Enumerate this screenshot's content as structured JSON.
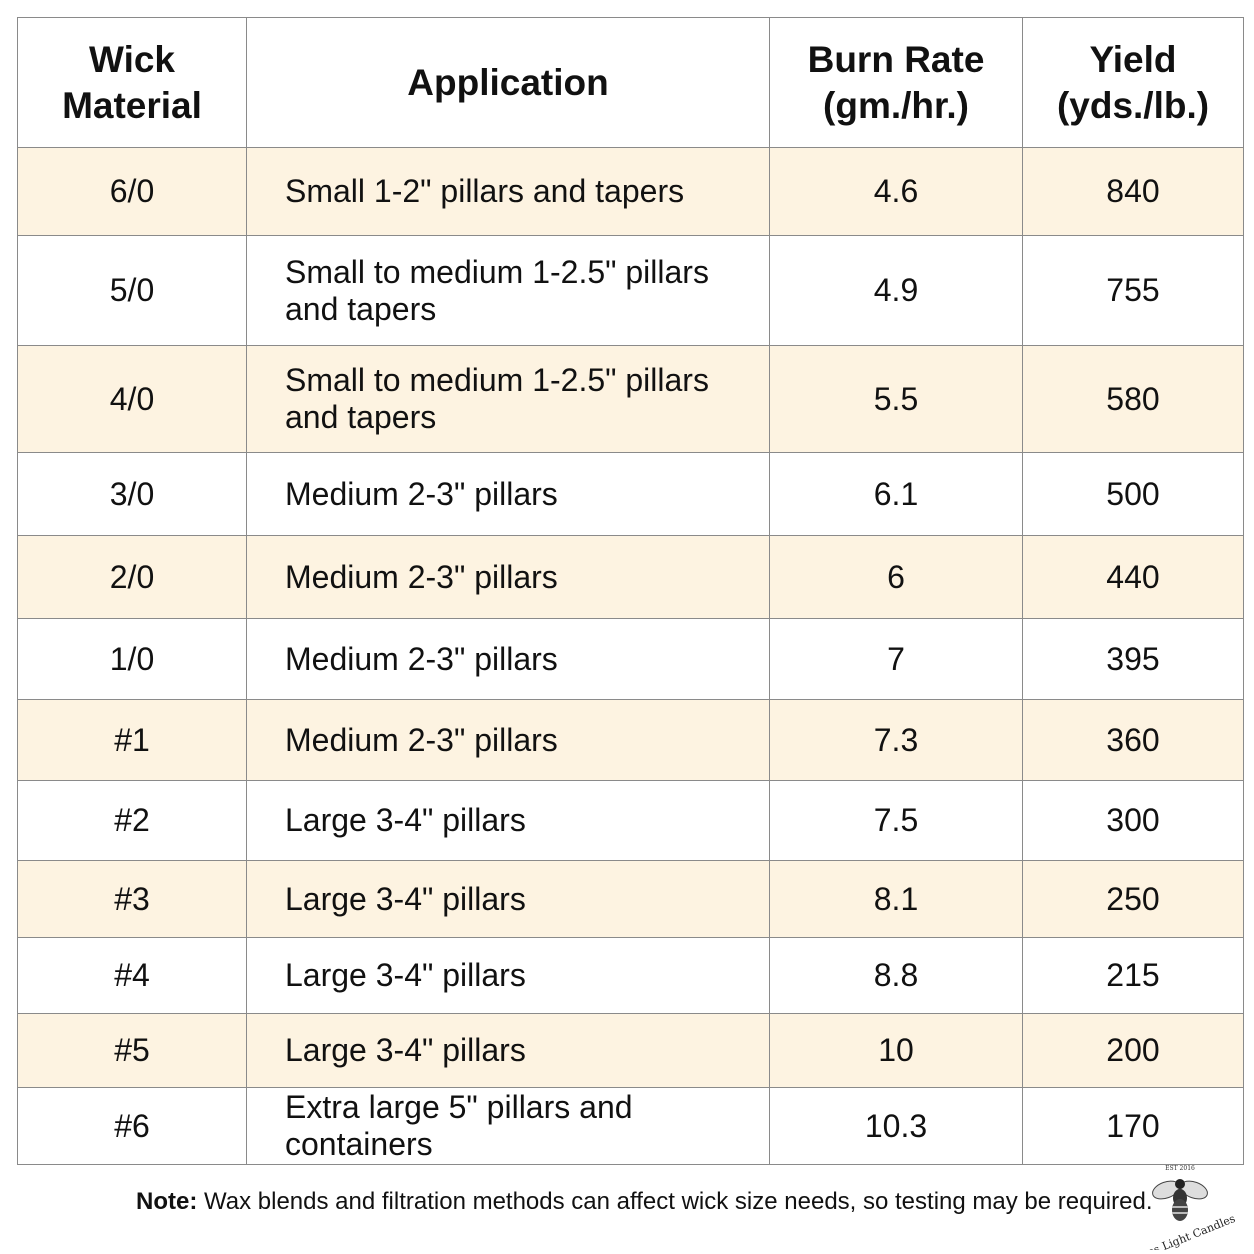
{
  "table": {
    "headers": [
      "Wick\nMaterial",
      "Application",
      "Burn Rate\n(gm./hr.)",
      "Yield\n(yds./lb.)"
    ],
    "rows": [
      {
        "material": "6/0",
        "application": "Small 1-2\" pillars and tapers",
        "burn_rate": "4.6",
        "yield": "840"
      },
      {
        "material": "5/0",
        "application": "Small to medium 1-2.5\" pillars and tapers",
        "burn_rate": "4.9",
        "yield": "755"
      },
      {
        "material": "4/0",
        "application": "Small to medium 1-2.5\" pillars and tapers",
        "burn_rate": "5.5",
        "yield": "580"
      },
      {
        "material": "3/0",
        "application": "Medium 2-3\" pillars",
        "burn_rate": "6.1",
        "yield": "500"
      },
      {
        "material": "2/0",
        "application": "Medium 2-3\" pillars",
        "burn_rate": "6",
        "yield": "440"
      },
      {
        "material": "1/0",
        "application": "Medium 2-3\" pillars",
        "burn_rate": "7",
        "yield": "395"
      },
      {
        "material": "#1",
        "application": "Medium 2-3\" pillars",
        "burn_rate": "7.3",
        "yield": "360"
      },
      {
        "material": "#2",
        "application": "Large 3-4\" pillars",
        "burn_rate": "7.5",
        "yield": "300"
      },
      {
        "material": "#3",
        "application": "Large 3-4\" pillars",
        "burn_rate": "8.1",
        "yield": "250"
      },
      {
        "material": "#4",
        "application": "Large 3-4\" pillars",
        "burn_rate": "8.8",
        "yield": "215"
      },
      {
        "material": "#5",
        "application": "Large 3-4\" pillars",
        "burn_rate": "10",
        "yield": "200"
      },
      {
        "material": "#6",
        "application": "Extra large 5\" pillars and containers",
        "burn_rate": "10.3",
        "yield": "170"
      }
    ]
  },
  "note": {
    "label": "Note:",
    "text": " Wax blends and filtration methods can affect wick size needs, so testing may be required."
  },
  "logo": {
    "brand": "Bees Light Candles",
    "est": "EST 2016",
    "icon": "bee-icon"
  },
  "colors": {
    "row_highlight": "#fdf3e1",
    "border": "#8a8a8a"
  }
}
